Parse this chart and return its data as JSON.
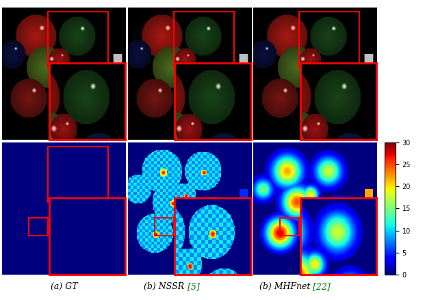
{
  "captions": [
    "(a) GT",
    "(b) NSSR [5]",
    "(b) MHFnet [22]"
  ],
  "colorbar_range": [
    0,
    30
  ],
  "colorbar_ticks": [
    0,
    5,
    10,
    15,
    20,
    25,
    30
  ],
  "fig_bg": "white"
}
